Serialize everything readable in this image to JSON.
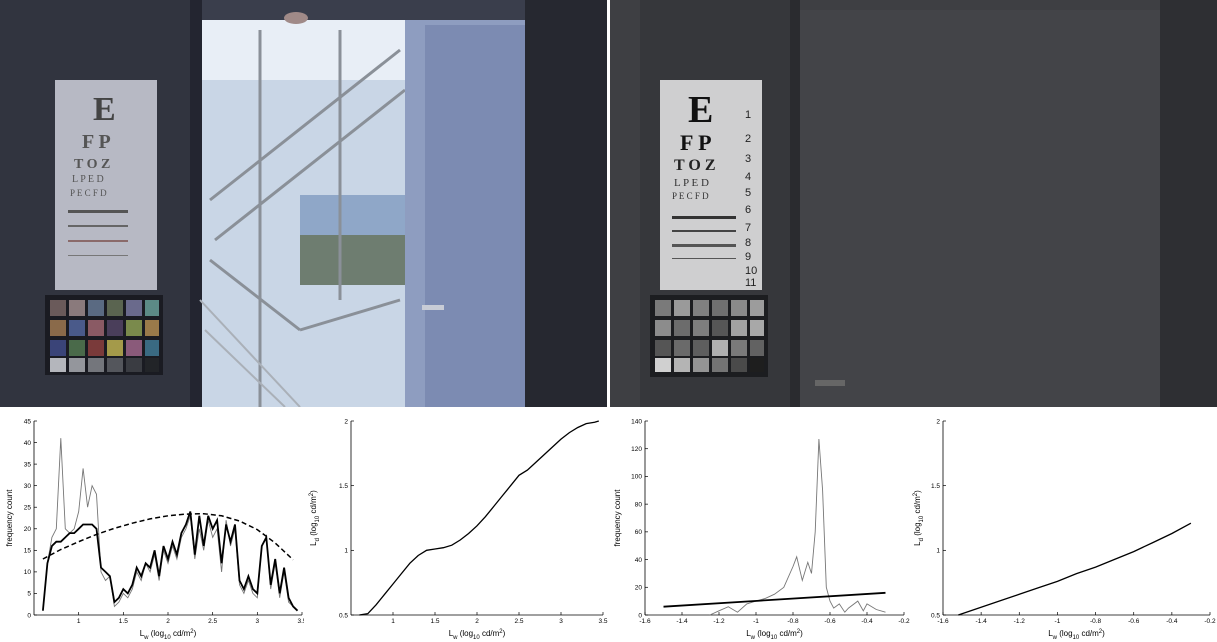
{
  "chart_data": [
    {
      "type": "line",
      "ylabel": "frequency count",
      "xlabel_main": "L",
      "xlabel_sub": "w",
      "xlabel_rest": " (log",
      "xlabel_sub2": "10",
      "xlabel_end": " cd/m",
      "xlabel_sup": "2",
      "xlabel_close": ")",
      "xlim": [
        0.5,
        3.5
      ],
      "ylim": [
        0,
        45
      ],
      "xticks": [
        1,
        1.5,
        2,
        2.5,
        3,
        3.5
      ],
      "yticks": [
        0,
        5,
        10,
        15,
        20,
        25,
        30,
        35,
        40,
        45
      ],
      "series": [
        {
          "style": "thin-gray",
          "color": "#777777",
          "x": [
            0.6,
            0.65,
            0.7,
            0.75,
            0.8,
            0.85,
            0.9,
            0.95,
            1.0,
            1.05,
            1.1,
            1.15,
            1.2,
            1.25,
            1.3,
            1.35,
            1.4,
            1.45,
            1.5,
            1.55,
            1.6,
            1.65,
            1.7,
            1.75,
            1.8,
            1.85,
            1.9,
            1.95,
            2.0,
            2.05,
            2.1,
            2.15,
            2.2,
            2.25,
            2.3,
            2.35,
            2.4,
            2.45,
            2.5,
            2.55,
            2.6,
            2.65,
            2.7,
            2.75,
            2.8,
            2.85,
            2.9,
            2.95,
            3.0,
            3.05,
            3.1,
            3.15,
            3.2,
            3.25,
            3.3,
            3.35,
            3.4,
            3.45
          ],
          "y": [
            1,
            12,
            18,
            20,
            41,
            20,
            19,
            20,
            24,
            34,
            25,
            30,
            28,
            10,
            8,
            9,
            2,
            3,
            5,
            4,
            6,
            10,
            8,
            12,
            10,
            14,
            8,
            15,
            12,
            16,
            13,
            18,
            20,
            23,
            13,
            20,
            15,
            22,
            18,
            20,
            10,
            22,
            16,
            20,
            7,
            5,
            8,
            5,
            4,
            16,
            18,
            6,
            12,
            4,
            10,
            3,
            2,
            1
          ]
        },
        {
          "style": "thick-black",
          "color": "#000000",
          "x": [
            0.6,
            0.65,
            0.7,
            0.75,
            0.8,
            0.85,
            0.9,
            0.95,
            1.0,
            1.05,
            1.1,
            1.15,
            1.2,
            1.25,
            1.3,
            1.35,
            1.4,
            1.45,
            1.5,
            1.55,
            1.6,
            1.65,
            1.7,
            1.75,
            1.8,
            1.85,
            1.9,
            1.95,
            2.0,
            2.05,
            2.1,
            2.15,
            2.2,
            2.25,
            2.3,
            2.35,
            2.4,
            2.45,
            2.5,
            2.55,
            2.6,
            2.65,
            2.7,
            2.75,
            2.8,
            2.85,
            2.9,
            2.95,
            3.0,
            3.05,
            3.1,
            3.15,
            3.2,
            3.25,
            3.3,
            3.35,
            3.4,
            3.45
          ],
          "y": [
            1,
            12,
            16,
            17,
            17,
            18,
            19,
            19,
            20,
            21,
            21,
            21,
            20,
            11,
            10,
            9,
            3,
            4,
            6,
            5,
            7,
            11,
            9,
            12,
            11,
            15,
            9,
            16,
            13,
            17,
            14,
            19,
            21,
            24,
            14,
            23,
            16,
            23,
            20,
            22,
            12,
            21,
            17,
            21,
            8,
            6,
            9,
            6,
            5,
            16,
            18,
            7,
            13,
            5,
            11,
            4,
            2,
            1
          ]
        },
        {
          "style": "dashed-black",
          "color": "#000000",
          "x": [
            0.6,
            0.8,
            1.0,
            1.2,
            1.4,
            1.6,
            1.8,
            2.0,
            2.2,
            2.4,
            2.6,
            2.8,
            3.0,
            3.2,
            3.4
          ],
          "y": [
            13,
            15.2,
            17,
            18.7,
            20.1,
            21.3,
            22.3,
            23.0,
            23.4,
            23.5,
            23.0,
            21.8,
            19.8,
            16.7,
            12.8
          ]
        }
      ]
    },
    {
      "type": "line",
      "ylabel_main": "L",
      "ylabel_sub": "d",
      "ylabel_rest": " (log",
      "ylabel_sub2": "10",
      "ylabel_end": " cd/m",
      "ylabel_sup": "2",
      "ylabel_close": ")",
      "xlabel_main": "L",
      "xlabel_sub": "w",
      "xlabel_rest": " (log",
      "xlabel_sub2": "10",
      "xlabel_end": " cd/m",
      "xlabel_sup": "2",
      "xlabel_close": ")",
      "xlim": [
        0.5,
        3.5
      ],
      "ylim": [
        0.5,
        2
      ],
      "xticks": [
        1,
        1.5,
        2,
        2.5,
        3,
        3.5
      ],
      "yticks": [
        0.5,
        1,
        1.5,
        2
      ],
      "series": [
        {
          "style": "black",
          "color": "#000000",
          "x": [
            0.6,
            0.7,
            0.8,
            0.9,
            1.0,
            1.1,
            1.2,
            1.3,
            1.4,
            1.5,
            1.6,
            1.7,
            1.8,
            1.9,
            2.0,
            2.1,
            2.2,
            2.3,
            2.4,
            2.5,
            2.6,
            2.7,
            2.8,
            2.9,
            3.0,
            3.1,
            3.2,
            3.3,
            3.4,
            3.45
          ],
          "y": [
            0.5,
            0.51,
            0.58,
            0.66,
            0.74,
            0.82,
            0.9,
            0.96,
            1.0,
            1.01,
            1.02,
            1.04,
            1.08,
            1.13,
            1.19,
            1.26,
            1.34,
            1.42,
            1.5,
            1.58,
            1.62,
            1.68,
            1.74,
            1.8,
            1.86,
            1.91,
            1.95,
            1.98,
            1.99,
            2.0
          ]
        }
      ]
    },
    {
      "type": "line",
      "ylabel": "frequency count",
      "xlabel_main": "L",
      "xlabel_sub": "w",
      "xlabel_rest": " (log",
      "xlabel_sub2": "10",
      "xlabel_end": " cd/m",
      "xlabel_sup": "2",
      "xlabel_close": ")",
      "xlim": [
        -1.6,
        -0.2
      ],
      "ylim": [
        0,
        140
      ],
      "xticks": [
        -1.6,
        -1.4,
        -1.2,
        -1,
        -0.8,
        -0.6,
        -0.4,
        -0.2
      ],
      "xtick_labels": [
        "-1.6",
        "-1.4",
        "-1.2",
        "-1",
        "-0.8",
        "-0.6",
        "-0.4",
        "-0.2"
      ],
      "yticks": [
        0,
        20,
        40,
        60,
        80,
        100,
        120,
        140
      ],
      "series": [
        {
          "style": "thin-gray",
          "color": "#777777",
          "x": [
            -1.25,
            -1.2,
            -1.15,
            -1.1,
            -1.05,
            -1.0,
            -0.95,
            -0.9,
            -0.85,
            -0.8,
            -0.78,
            -0.75,
            -0.72,
            -0.7,
            -0.68,
            -0.66,
            -0.64,
            -0.62,
            -0.6,
            -0.58,
            -0.55,
            -0.52,
            -0.5,
            -0.45,
            -0.42,
            -0.4,
            -0.35,
            -0.3
          ],
          "y": [
            0,
            3,
            6,
            2,
            8,
            10,
            12,
            15,
            20,
            35,
            42,
            25,
            38,
            30,
            60,
            127,
            90,
            20,
            10,
            5,
            8,
            2,
            5,
            10,
            3,
            8,
            4,
            2
          ]
        },
        {
          "style": "thick-black",
          "color": "#000000",
          "x": [
            -1.5,
            -0.3
          ],
          "y": [
            6,
            16
          ]
        }
      ]
    },
    {
      "type": "line",
      "ylabel_main": "L",
      "ylabel_sub": "d",
      "ylabel_rest": " (log",
      "ylabel_sub2": "10",
      "ylabel_end": " cd/m",
      "ylabel_sup": "2",
      "ylabel_close": ")",
      "xlabel_main": "L",
      "xlabel_sub": "w",
      "xlabel_rest": " (log",
      "xlabel_sub2": "10",
      "xlabel_end": " cd/m",
      "xlabel_sup": "2",
      "xlabel_close": ")",
      "xlim": [
        -1.6,
        -0.2
      ],
      "ylim": [
        0.5,
        2
      ],
      "xticks": [
        -1.6,
        -1.4,
        -1.2,
        -1,
        -0.8,
        -0.6,
        -0.4,
        -0.2
      ],
      "xtick_labels": [
        "-1.6",
        "-1.4",
        "-1.2",
        "-1",
        "-0.8",
        "-0.6",
        "-0.4",
        "-0.2"
      ],
      "yticks": [
        0.5,
        1,
        1.5,
        2
      ],
      "series": [
        {
          "style": "black",
          "color": "#000000",
          "x": [
            -1.52,
            -1.4,
            -1.3,
            -1.2,
            -1.1,
            -1.0,
            -0.9,
            -0.8,
            -0.7,
            -0.6,
            -0.5,
            -0.4,
            -0.3
          ],
          "y": [
            0.5,
            0.56,
            0.61,
            0.66,
            0.71,
            0.76,
            0.82,
            0.87,
            0.93,
            0.99,
            1.06,
            1.13,
            1.21
          ]
        }
      ]
    }
  ],
  "photos": {
    "left_chart_numbers": [],
    "right_chart_numbers": [
      "1",
      "2",
      "3",
      "4",
      "5",
      "6",
      "7",
      "8",
      "9",
      "10",
      "11"
    ]
  }
}
